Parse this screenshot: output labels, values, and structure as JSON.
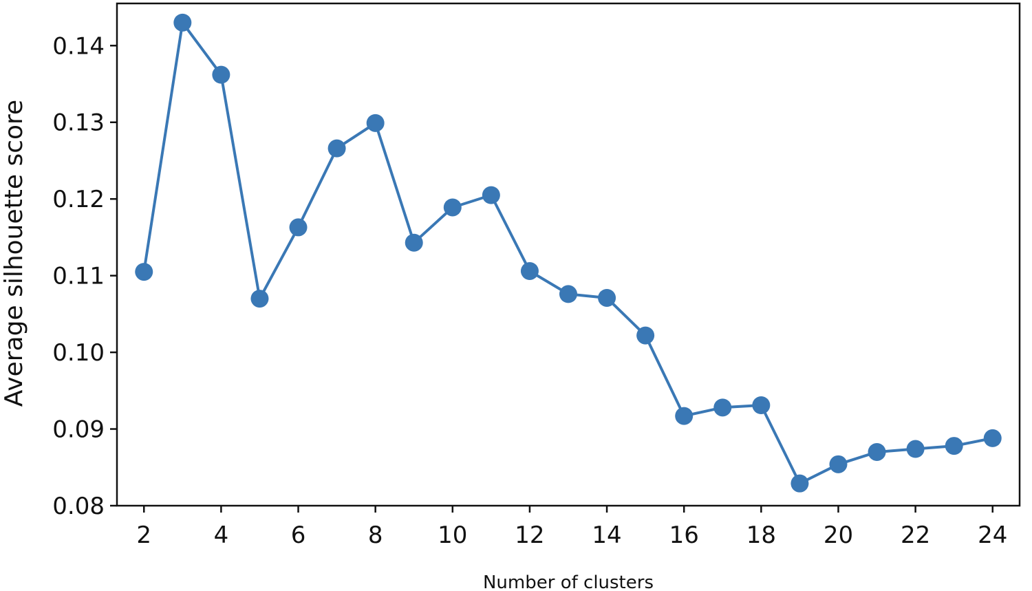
{
  "chart_data": {
    "type": "line",
    "title": "",
    "xlabel": "Number of clusters",
    "ylabel": "Average silhouette score",
    "xlim": [
      1.3,
      24.7
    ],
    "ylim": [
      0.08,
      0.1455
    ],
    "xticks": [
      2,
      4,
      6,
      8,
      10,
      12,
      14,
      16,
      18,
      20,
      22,
      24
    ],
    "xtick_labels": [
      "2",
      "4",
      "6",
      "8",
      "10",
      "12",
      "14",
      "16",
      "18",
      "20",
      "22",
      "24"
    ],
    "yticks": [
      0.08,
      0.09,
      0.1,
      0.11,
      0.12,
      0.13,
      0.14
    ],
    "ytick_labels": [
      "0.08",
      "0.09",
      "0.10",
      "0.11",
      "0.12",
      "0.13",
      "0.14"
    ],
    "grid": false,
    "series_color": "#3a78b5",
    "series": [
      {
        "x": [
          2,
          3,
          4,
          5,
          6,
          7,
          8,
          9,
          10,
          11,
          12,
          13,
          14,
          15,
          16,
          17,
          18,
          19,
          20,
          21,
          22,
          23,
          24
        ],
        "y": [
          0.1105,
          0.143,
          0.1362,
          0.107,
          0.1163,
          0.1266,
          0.1299,
          0.1143,
          0.1189,
          0.1205,
          0.1106,
          0.1076,
          0.1071,
          0.1022,
          0.0917,
          0.0928,
          0.0931,
          0.0829,
          0.0854,
          0.087,
          0.0874,
          0.0878,
          0.0888
        ]
      }
    ]
  }
}
